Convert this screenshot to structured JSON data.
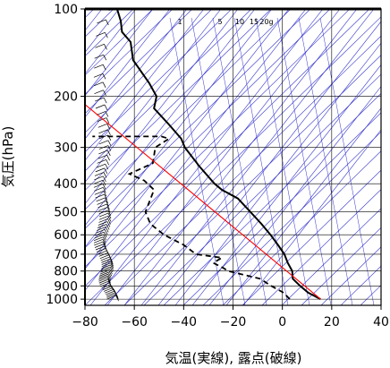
{
  "chart_data": {
    "type": "line",
    "subtype": "skew-T log-P diagram",
    "title": "",
    "xlabel": "気温(実線), 露点(破線)",
    "ylabel": "気圧(hPa)",
    "xlim": [
      -80,
      40
    ],
    "ylim_hpa": [
      1050,
      100
    ],
    "y_scale": "log",
    "y_ticks": [
      100,
      200,
      300,
      400,
      500,
      600,
      700,
      800,
      900,
      1000
    ],
    "y_tick_labels": [
      "100",
      "200",
      "300",
      "400",
      "500",
      "600",
      "700",
      "800",
      "900",
      "1000"
    ],
    "x_ticks": [
      -80,
      -60,
      -40,
      -20,
      0,
      20,
      40
    ],
    "x_tick_labels": [
      "−80",
      "−60",
      "−40",
      "−20",
      "0",
      "20",
      "40"
    ],
    "mixing_ratio_labels": [
      "1",
      "5",
      "10",
      "15",
      "20g"
    ],
    "series": [
      {
        "style": "solid",
        "color": "#000000",
        "points": [
          {
            "p": 1000,
            "t": 15.5
          },
          {
            "p": 950,
            "t": 10.5
          },
          {
            "p": 900,
            "t": 7.2
          },
          {
            "p": 850,
            "t": 4.2
          },
          {
            "p": 800,
            "t": 4.0
          },
          {
            "p": 750,
            "t": 2.2
          },
          {
            "p": 700,
            "t": 0.8
          },
          {
            "p": 650,
            "t": -1.8
          },
          {
            "p": 600,
            "t": -4.8
          },
          {
            "p": 550,
            "t": -8.5
          },
          {
            "p": 500,
            "t": -13.0
          },
          {
            "p": 450,
            "t": -18.0
          },
          {
            "p": 420,
            "t": -24.5
          },
          {
            "p": 400,
            "t": -27.5
          },
          {
            "p": 350,
            "t": -33.5
          },
          {
            "p": 300,
            "t": -39.5
          },
          {
            "p": 280,
            "t": -41.0
          },
          {
            "p": 250,
            "t": -46.0
          },
          {
            "p": 220,
            "t": -52.0
          },
          {
            "p": 200,
            "t": -51.0
          },
          {
            "p": 180,
            "t": -54.0
          },
          {
            "p": 150,
            "t": -60.5
          },
          {
            "p": 130,
            "t": -61.5
          },
          {
            "p": 120,
            "t": -65.0
          },
          {
            "p": 110,
            "t": -65.5
          },
          {
            "p": 100,
            "t": -67.0
          }
        ]
      },
      {
        "style": "dashed",
        "color": "#000000",
        "points": [
          {
            "p": 1000,
            "t": 3.0
          },
          {
            "p": 950,
            "t": 0.5
          },
          {
            "p": 900,
            "t": -4.5
          },
          {
            "p": 850,
            "t": -9.0
          },
          {
            "p": 800,
            "t": -22.0
          },
          {
            "p": 780,
            "t": -24.0
          },
          {
            "p": 750,
            "t": -28.0
          },
          {
            "p": 720,
            "t": -24.5
          },
          {
            "p": 700,
            "t": -35.0
          },
          {
            "p": 650,
            "t": -40.0
          },
          {
            "p": 600,
            "t": -48.0
          },
          {
            "p": 550,
            "t": -53.5
          },
          {
            "p": 500,
            "t": -55.5
          },
          {
            "p": 420,
            "t": -52.0
          },
          {
            "p": 390,
            "t": -56.0
          },
          {
            "p": 370,
            "t": -62.0
          },
          {
            "p": 340,
            "t": -52.5
          },
          {
            "p": 300,
            "t": -51.5
          },
          {
            "p": 280,
            "t": -46.0
          },
          {
            "p": 275,
            "t": -49.0
          },
          {
            "p": 275,
            "t": -77.0
          }
        ]
      },
      {
        "style": "solid-thin",
        "color": "#ff0000",
        "points": [
          {
            "p": 1000,
            "t": 15.5
          },
          {
            "p": 200,
            "t": -84.0
          }
        ]
      }
    ],
    "wind_barbs": "left margin column, 1000–100 hPa",
    "grid": true,
    "background_lines": {
      "isotherms": "blue, skewed",
      "adiabats": "blue",
      "mixing_ratio": "blue"
    }
  },
  "colors": {
    "grid": "#000000",
    "background_lines": "#3333cc",
    "temperature": "#000000",
    "dewpoint": "#000000",
    "parcel": "#ff0000"
  }
}
